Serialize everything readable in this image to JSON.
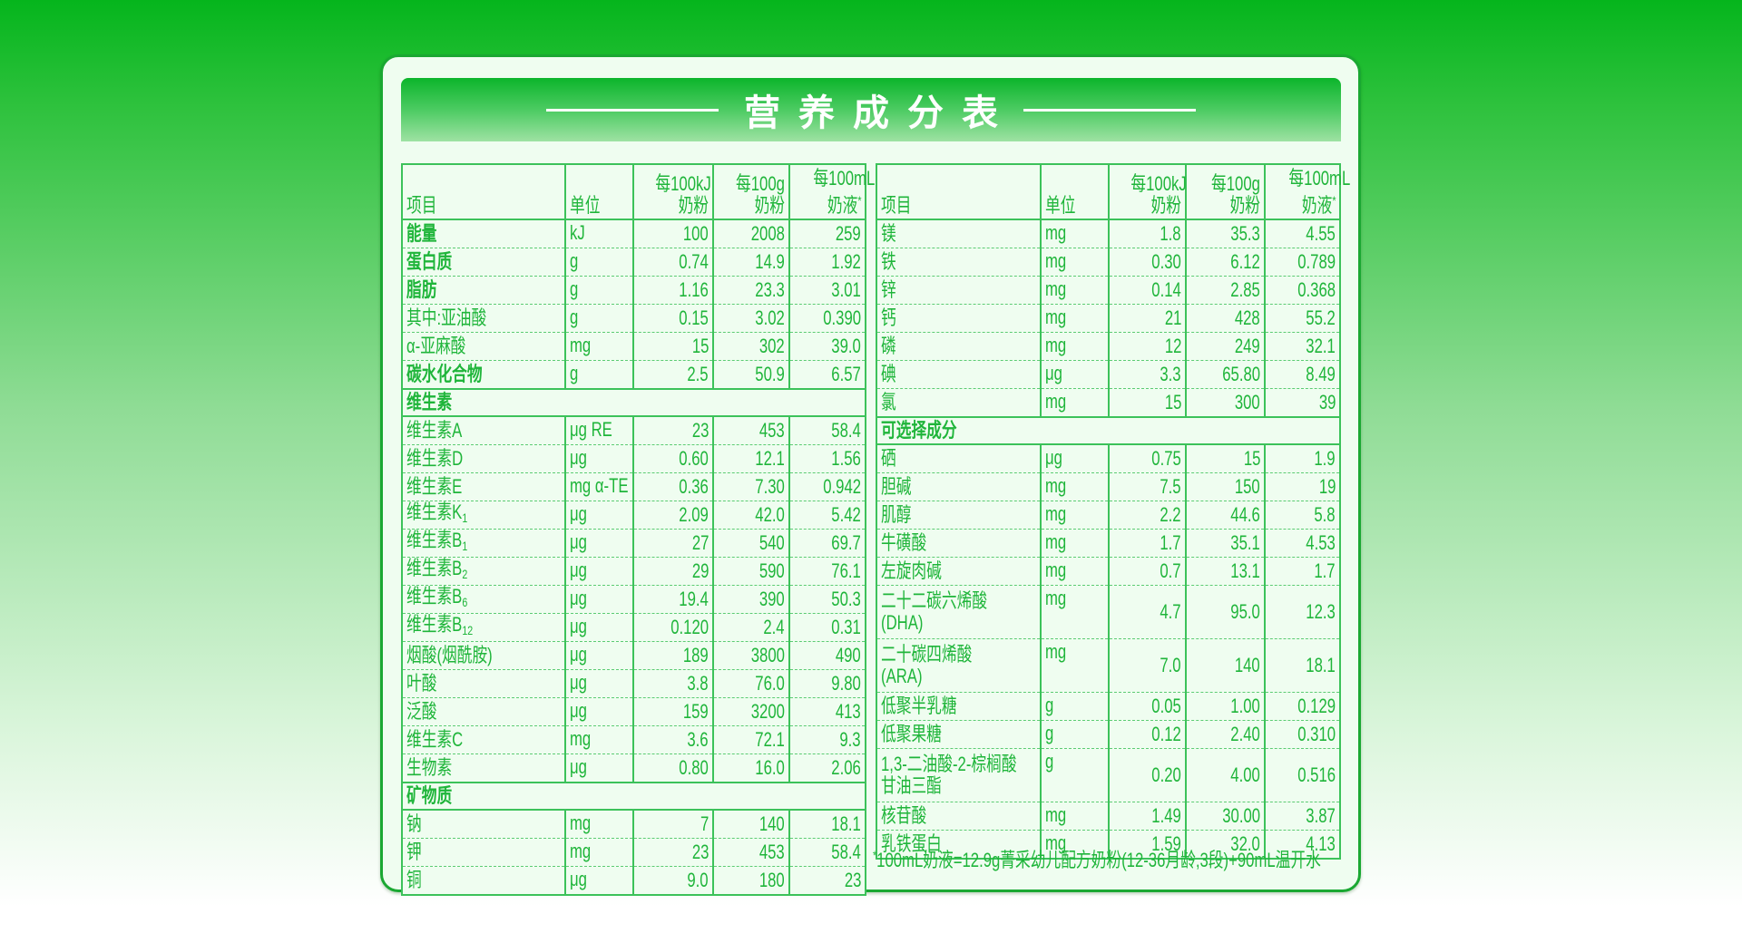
{
  "title": "营养成分表",
  "colors": {
    "text": "#1fb53a",
    "border": "#3cc25a",
    "title_bar": "#0cb52b",
    "card_bg": "#effdf0"
  },
  "header": {
    "item": "项目",
    "unit": "单位",
    "col1": [
      "每100kJ",
      "奶粉"
    ],
    "col2": [
      "每100g",
      "奶粉"
    ],
    "col3": [
      "每100mL",
      "奶液"
    ],
    "col3_mark": "*"
  },
  "left_rows": [
    {
      "name": "能量",
      "unit": "kJ",
      "v": [
        "100",
        "2008",
        "259"
      ],
      "bold": true
    },
    {
      "name": "蛋白质",
      "unit": "g",
      "v": [
        "0.74",
        "14.9",
        "1.92"
      ],
      "bold": true
    },
    {
      "name": "脂肪",
      "unit": "g",
      "v": [
        "1.16",
        "23.3",
        "3.01"
      ],
      "bold": true
    },
    {
      "name": "其中:亚油酸",
      "unit": "g",
      "v": [
        "0.15",
        "3.02",
        "0.390"
      ]
    },
    {
      "name": "α-亚麻酸",
      "unit": "mg",
      "v": [
        "15",
        "302",
        "39.0"
      ]
    },
    {
      "name": "碳水化合物",
      "unit": "g",
      "v": [
        "2.5",
        "50.9",
        "6.57"
      ],
      "bold": true
    },
    {
      "section": "维生素"
    },
    {
      "name": "维生素A",
      "unit": "μg RE",
      "v": [
        "23",
        "453",
        "58.4"
      ]
    },
    {
      "name": "维生素D",
      "unit": "μg",
      "v": [
        "0.60",
        "12.1",
        "1.56"
      ]
    },
    {
      "name": "维生素E",
      "unit": "mg α-TE",
      "v": [
        "0.36",
        "7.30",
        "0.942"
      ]
    },
    {
      "name": "维生素K",
      "sub": "1",
      "unit": "μg",
      "v": [
        "2.09",
        "42.0",
        "5.42"
      ]
    },
    {
      "name": "维生素B",
      "sub": "1",
      "unit": "μg",
      "v": [
        "27",
        "540",
        "69.7"
      ]
    },
    {
      "name": "维生素B",
      "sub": "2",
      "unit": "μg",
      "v": [
        "29",
        "590",
        "76.1"
      ]
    },
    {
      "name": "维生素B",
      "sub": "6",
      "unit": "μg",
      "v": [
        "19.4",
        "390",
        "50.3"
      ]
    },
    {
      "name": "维生素B",
      "sub": "12",
      "unit": "μg",
      "v": [
        "0.120",
        "2.4",
        "0.31"
      ]
    },
    {
      "name": "烟酸(烟酰胺)",
      "unit": "μg",
      "v": [
        "189",
        "3800",
        "490"
      ]
    },
    {
      "name": "叶酸",
      "unit": "μg",
      "v": [
        "3.8",
        "76.0",
        "9.80"
      ]
    },
    {
      "name": "泛酸",
      "unit": "μg",
      "v": [
        "159",
        "3200",
        "413"
      ]
    },
    {
      "name": "维生素C",
      "unit": "mg",
      "v": [
        "3.6",
        "72.1",
        "9.3"
      ]
    },
    {
      "name": "生物素",
      "unit": "μg",
      "v": [
        "0.80",
        "16.0",
        "2.06"
      ]
    },
    {
      "section": "矿物质"
    },
    {
      "name": "钠",
      "unit": "mg",
      "v": [
        "7",
        "140",
        "18.1"
      ]
    },
    {
      "name": "钾",
      "unit": "mg",
      "v": [
        "23",
        "453",
        "58.4"
      ]
    },
    {
      "name": "铜",
      "unit": "μg",
      "v": [
        "9.0",
        "180",
        "23"
      ]
    }
  ],
  "right_rows": [
    {
      "name": "镁",
      "unit": "mg",
      "v": [
        "1.8",
        "35.3",
        "4.55"
      ]
    },
    {
      "name": "铁",
      "unit": "mg",
      "v": [
        "0.30",
        "6.12",
        "0.789"
      ]
    },
    {
      "name": "锌",
      "unit": "mg",
      "v": [
        "0.14",
        "2.85",
        "0.368"
      ]
    },
    {
      "name": "钙",
      "unit": "mg",
      "v": [
        "21",
        "428",
        "55.2"
      ]
    },
    {
      "name": "磷",
      "unit": "mg",
      "v": [
        "12",
        "249",
        "32.1"
      ]
    },
    {
      "name": "碘",
      "unit": "μg",
      "v": [
        "3.3",
        "65.80",
        "8.49"
      ]
    },
    {
      "name": "氯",
      "unit": "mg",
      "v": [
        "15",
        "300",
        "39"
      ]
    },
    {
      "section": "可选择成分"
    },
    {
      "name": "硒",
      "unit": "μg",
      "v": [
        "0.75",
        "15",
        "1.9"
      ]
    },
    {
      "name": "胆碱",
      "unit": "mg",
      "v": [
        "7.5",
        "150",
        "19"
      ]
    },
    {
      "name": "肌醇",
      "unit": "mg",
      "v": [
        "2.2",
        "44.6",
        "5.8"
      ]
    },
    {
      "name": "牛磺酸",
      "unit": "mg",
      "v": [
        "1.7",
        "35.1",
        "4.53"
      ]
    },
    {
      "name": "左旋肉碱",
      "unit": "mg",
      "v": [
        "0.7",
        "13.1",
        "1.7"
      ]
    },
    {
      "name": "二十二碳六烯酸",
      "name2": "(DHA)",
      "unit": "mg",
      "v": [
        "4.7",
        "95.0",
        "12.3"
      ],
      "tall": true
    },
    {
      "name": "二十碳四烯酸",
      "name2": "(ARA)",
      "unit": "mg",
      "v": [
        "7.0",
        "140",
        "18.1"
      ],
      "tall": true
    },
    {
      "name": "低聚半乳糖",
      "unit": "g",
      "v": [
        "0.05",
        "1.00",
        "0.129"
      ]
    },
    {
      "name": "低聚果糖",
      "unit": "g",
      "v": [
        "0.12",
        "2.40",
        "0.310"
      ]
    },
    {
      "name": "1,3-二油酸-2-棕榈酸",
      "name2": "甘油三酯",
      "unit": "g",
      "v": [
        "0.20",
        "4.00",
        "0.516"
      ],
      "tall": true
    },
    {
      "name": "核苷酸",
      "unit": "mg",
      "v": [
        "1.49",
        "30.00",
        "3.87"
      ]
    },
    {
      "name": "乳铁蛋白",
      "unit": "mg",
      "v": [
        "1.59",
        "32.0",
        "4.13"
      ]
    }
  ],
  "footnote": {
    "mark": "*",
    "text": "100mL奶液=12.9g菁采幼儿配方奶粉(12-36月龄,3段)+90mL温开水"
  }
}
